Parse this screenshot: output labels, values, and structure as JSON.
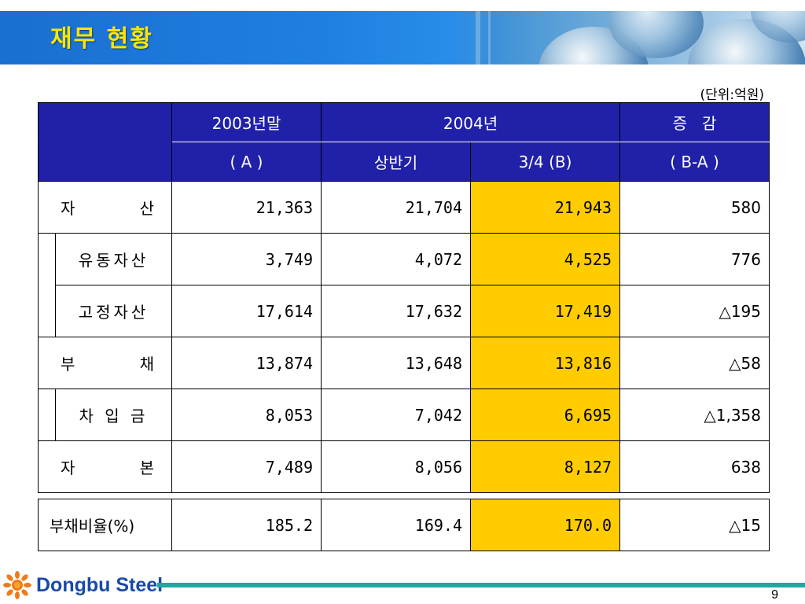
{
  "slide": {
    "title": "재무 현황",
    "unit": "(단위:억원)",
    "page_number": "9"
  },
  "table": {
    "header": {
      "col_2003_top": "2003년말",
      "col_2003_bottom": "( A )",
      "col_2004": "2004년",
      "col_2004_h1": "상반기",
      "col_2004_q3": "3/4 (B)",
      "col_change_top": "증   감",
      "col_change_bottom": "( B-A )"
    },
    "rows": [
      {
        "label_a": "자",
        "label_b": "산",
        "v2003": "21,363",
        "h1": "21,704",
        "q3": "21,943",
        "change": "580"
      },
      {
        "label": "유동자산",
        "v2003": "3,749",
        "h1": "4,072",
        "q3": "4,525",
        "change": "776"
      },
      {
        "label": "고정자산",
        "v2003": "17,614",
        "h1": "17,632",
        "q3": "17,419",
        "change": "△195"
      },
      {
        "label_a": "부",
        "label_b": "채",
        "v2003": "13,874",
        "h1": "13,648",
        "q3": "13,816",
        "change": "△58"
      },
      {
        "label": "차 입 금",
        "v2003": "8,053",
        "h1": "7,042",
        "q3": "6,695",
        "change": "△1,358"
      },
      {
        "label_a": "자",
        "label_b": "본",
        "v2003": "7,489",
        "h1": "8,056",
        "q3": "8,127",
        "change": "638"
      }
    ],
    "ratio": {
      "label": "부채비율(%)",
      "v2003": "185.2",
      "h1": "169.4",
      "q3": "170.0",
      "change": "△15"
    },
    "highlight_color": "#ffcc00",
    "header_color": "#2020a8"
  },
  "footer": {
    "brand": "Dongbu Steel",
    "logo_icon": "sun-icon",
    "accent_color": "#1fa7a0"
  }
}
